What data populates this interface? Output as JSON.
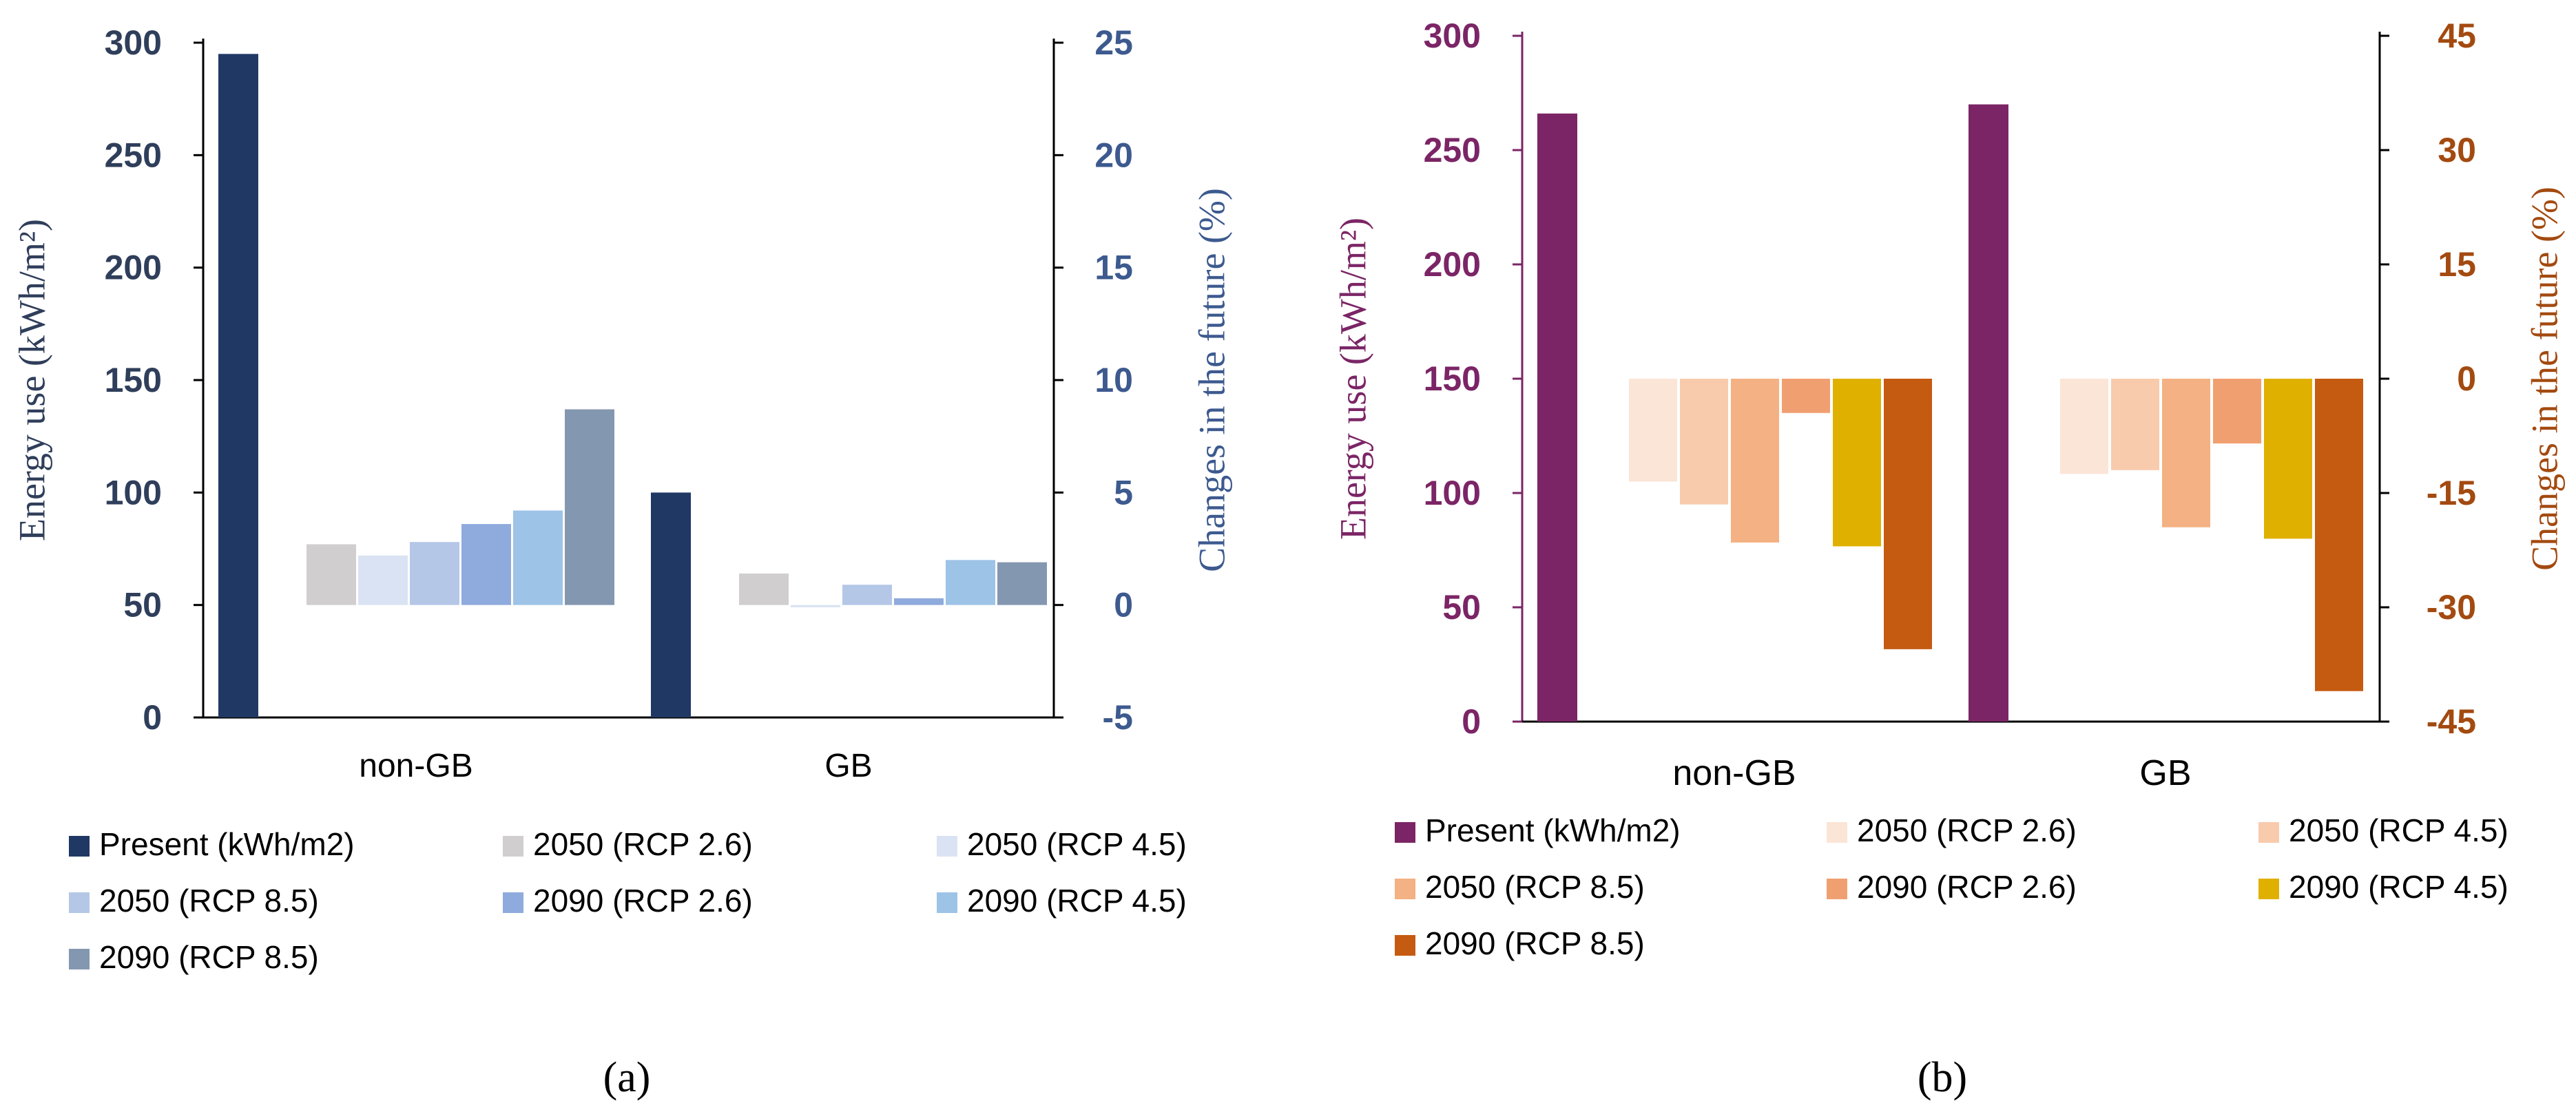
{
  "chart_data": [
    {
      "panel_label": "(a)",
      "type": "bar",
      "categories": [
        "non-GB",
        "GB"
      ],
      "primary_axis": {
        "label": "Energy use (kWh/m²)",
        "ylim": [
          0,
          300
        ],
        "ticks": [
          "0",
          "50",
          "100",
          "150",
          "200",
          "250",
          "300"
        ],
        "color": "#2f3e5a"
      },
      "secondary_axis": {
        "label": "Changes in the future (%)",
        "ylim": [
          -5,
          25
        ],
        "ticks": [
          "-5",
          "0",
          "5",
          "10",
          "15",
          "20",
          "25"
        ],
        "color": "#3d5a8f"
      },
      "series": [
        {
          "name": "Present (kWh/m2)",
          "axis": "primary",
          "color": "#203864",
          "values": [
            295,
            100
          ]
        },
        {
          "name": "2050 (RCP 2.6)",
          "axis": "secondary",
          "color": "#d0cece",
          "values": [
            2.7,
            1.4
          ]
        },
        {
          "name": "2050 (RCP 4.5)",
          "axis": "secondary",
          "color": "#dae3f3",
          "values": [
            2.2,
            -0.1
          ]
        },
        {
          "name": "2050 (RCP 8.5)",
          "axis": "secondary",
          "color": "#b4c7e7",
          "values": [
            2.8,
            0.9
          ]
        },
        {
          "name": "2090 (RCP 2.6)",
          "axis": "secondary",
          "color": "#8faadc",
          "values": [
            3.6,
            0.3
          ]
        },
        {
          "name": "2090 (RCP 4.5)",
          "axis": "secondary",
          "color": "#9dc3e6",
          "values": [
            4.2,
            2.0
          ]
        },
        {
          "name": "2090 (RCP 8.5)",
          "axis": "secondary",
          "color": "#8497b0",
          "values": [
            8.7,
            1.9
          ]
        }
      ]
    },
    {
      "panel_label": "(b)",
      "type": "bar",
      "categories": [
        "non-GB",
        "GB"
      ],
      "primary_axis": {
        "label": "Energy use (kWh/m²)",
        "ylim": [
          0,
          300
        ],
        "ticks": [
          "0",
          "50",
          "100",
          "150",
          "200",
          "250",
          "300"
        ],
        "color": "#7b2566"
      },
      "secondary_axis": {
        "label": "Changes in the future (%)",
        "ylim": [
          -45,
          45
        ],
        "ticks": [
          "-45",
          "-30",
          "-15",
          "0",
          "15",
          "30",
          "45"
        ],
        "color": "#a34a10"
      },
      "series": [
        {
          "name": "Present (kWh/m2)",
          "axis": "primary",
          "color": "#7b2566",
          "values": [
            266,
            270
          ]
        },
        {
          "name": "2050 (RCP 2.6)",
          "axis": "secondary",
          "color": "#fbe5d6",
          "values": [
            -13.5,
            -12.5
          ]
        },
        {
          "name": "2050 (RCP 4.5)",
          "axis": "secondary",
          "color": "#f8cbad",
          "values": [
            -16.5,
            -12
          ]
        },
        {
          "name": "2050 (RCP 8.5)",
          "axis": "secondary",
          "color": "#f4b183",
          "values": [
            -21.5,
            -19.5
          ]
        },
        {
          "name": "2090 (RCP 2.6)",
          "axis": "secondary",
          "color": "#f0a070",
          "values": [
            -4.5,
            -8.5
          ]
        },
        {
          "name": "2090 (RCP 4.5)",
          "axis": "secondary",
          "color": "#e0b000",
          "values": [
            -22,
            -21
          ]
        },
        {
          "name": "2090 (RCP 8.5)",
          "axis": "secondary",
          "color": "#c55a11",
          "values": [
            -35.5,
            -41
          ]
        }
      ]
    }
  ]
}
